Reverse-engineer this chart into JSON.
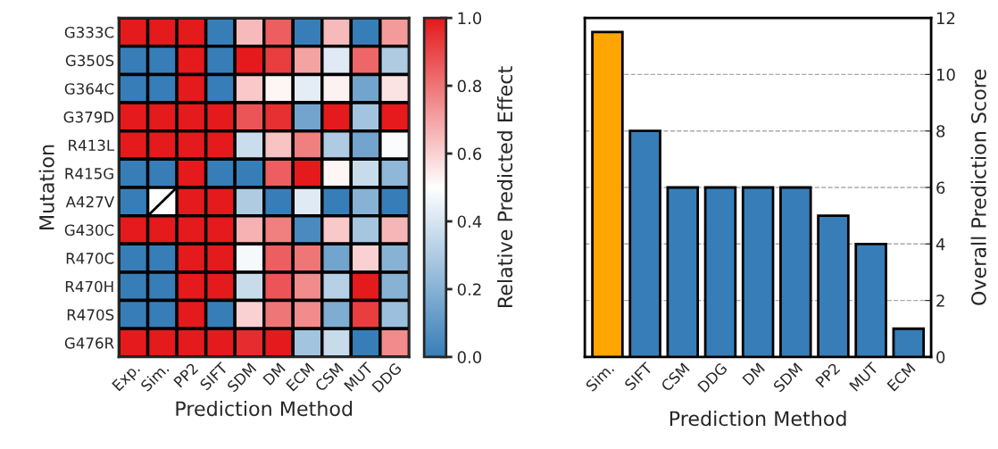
{
  "chart_data": [
    {
      "type": "heatmap",
      "xlabel": "Prediction Method",
      "ylabel": "Mutation",
      "clabel": "Relative Predicted Effect",
      "categories": [
        "Exp.",
        "Sim.",
        "PP2",
        "SIFT",
        "SDM",
        "DM",
        "ECM",
        "CSM",
        "MUT",
        "DDG"
      ],
      "y_categories": [
        "G333C",
        "G350S",
        "G364C",
        "G379D",
        "R413L",
        "R415G",
        "A427V",
        "G430C",
        "R470C",
        "R470H",
        "R470S",
        "G476R"
      ],
      "cells": [
        [
          1,
          1,
          1,
          0,
          0.65,
          0.85,
          0,
          0.65,
          0,
          0.72
        ],
        [
          0,
          0,
          1,
          0,
          1,
          0.92,
          0.7,
          0.42,
          0.83,
          0.3
        ],
        [
          0,
          0,
          1,
          0,
          0.62,
          0.52,
          0.43,
          0.53,
          0.15,
          0.56
        ],
        [
          1,
          1,
          1,
          1,
          0.87,
          0.95,
          0.15,
          1,
          0.27,
          1
        ],
        [
          1,
          1,
          1,
          1,
          0.37,
          0.63,
          0.78,
          0.3,
          0.15,
          0.49
        ],
        [
          0,
          0,
          1,
          0,
          0,
          0.85,
          1,
          0.52,
          0.36,
          0.22
        ],
        [
          0,
          null,
          1,
          1,
          0.3,
          0,
          0.42,
          0,
          0.2,
          0
        ],
        [
          1,
          1,
          1,
          1,
          0.67,
          0.78,
          0.05,
          0.62,
          0.28,
          0.66
        ],
        [
          0,
          0,
          1,
          1,
          0.48,
          0.85,
          0.8,
          0.15,
          0.6,
          0.2
        ],
        [
          0,
          0,
          1,
          1,
          0.36,
          0.87,
          0.75,
          0.32,
          1,
          0.2
        ],
        [
          0,
          0,
          1,
          0,
          0.6,
          0.8,
          0.75,
          0.18,
          0.92,
          0.25
        ],
        [
          1,
          1,
          1,
          1,
          0.96,
          1,
          0.27,
          0.36,
          0,
          0.75
        ]
      ],
      "clim": [
        0,
        1
      ],
      "cticks": [
        {
          "value": 0,
          "label": "0.0"
        },
        {
          "value": 0.2,
          "label": "0.2"
        },
        {
          "value": 0.4,
          "label": "0.4"
        },
        {
          "value": 0.6,
          "label": "0.6"
        },
        {
          "value": 0.8,
          "label": "0.8"
        },
        {
          "value": 1,
          "label": "1.0"
        }
      ]
    },
    {
      "type": "bar",
      "xlabel": "Prediction Method",
      "ylabel": "Overall Prediction Score",
      "categories": [
        "Sim.",
        "SIFT",
        "CSM",
        "DDG",
        "DM",
        "SDM",
        "PP2",
        "MUT",
        "ECM"
      ],
      "values": [
        11.5,
        8,
        6,
        6,
        6,
        6,
        5,
        4,
        1
      ],
      "colors": [
        "#ffa500",
        "#377eb8",
        "#377eb8",
        "#377eb8",
        "#377eb8",
        "#377eb8",
        "#377eb8",
        "#377eb8",
        "#377eb8"
      ],
      "ylim": [
        0,
        12
      ],
      "yticks": [
        0,
        2,
        4,
        6,
        8,
        10,
        12
      ],
      "grid": "y"
    }
  ]
}
